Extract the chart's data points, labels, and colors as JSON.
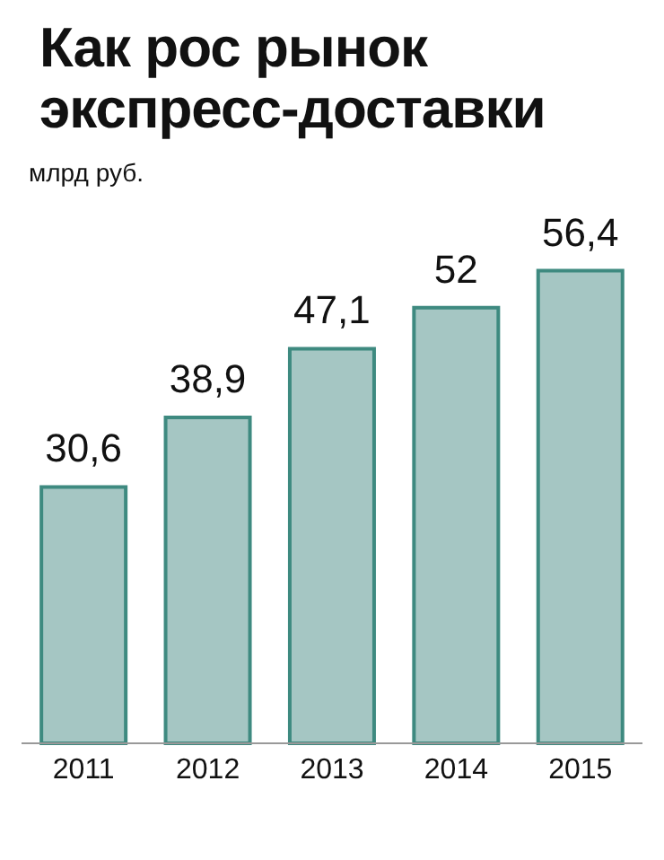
{
  "chart_data": {
    "type": "bar",
    "title": "Как рос рынок экспресс-доставки",
    "ylabel": "млрд руб.",
    "categories": [
      "2011",
      "2012",
      "2013",
      "2014",
      "2015"
    ],
    "values": [
      30.6,
      38.9,
      47.1,
      52,
      56.4
    ],
    "value_labels": [
      "30,6",
      "38,9",
      "47,1",
      "52",
      "56,4"
    ],
    "color": "#a5c6c3"
  }
}
